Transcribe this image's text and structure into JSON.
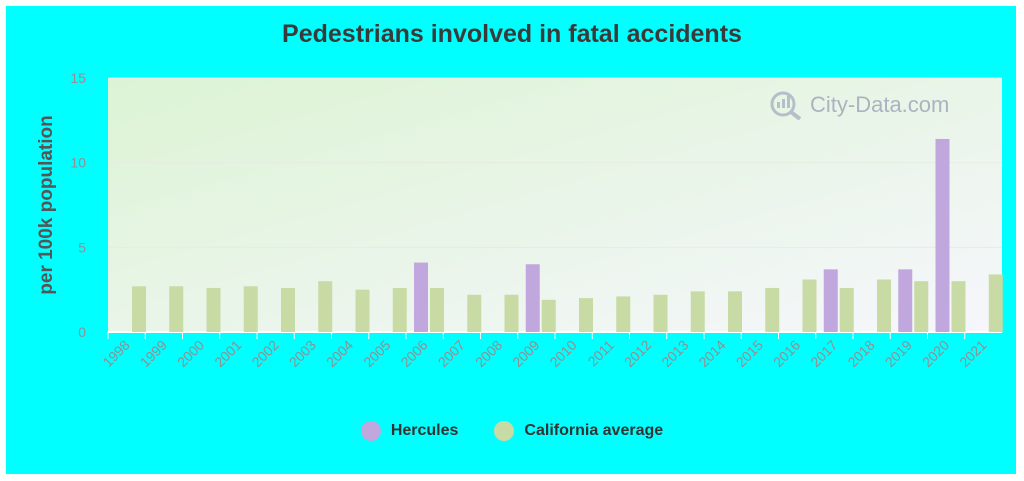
{
  "chart_data": {
    "type": "bar",
    "title": "Pedestrians involved in fatal accidents",
    "ylabel": "per 100k population",
    "xlabel": "",
    "ylim": [
      0,
      15
    ],
    "yticks": [
      0,
      5,
      10,
      15
    ],
    "grid": true,
    "legend_position": "bottom",
    "categories": [
      "1998",
      "1999",
      "2000",
      "2001",
      "2002",
      "2003",
      "2004",
      "2005",
      "2006",
      "2007",
      "2008",
      "2009",
      "2010",
      "2011",
      "2012",
      "2013",
      "2014",
      "2015",
      "2016",
      "2017",
      "2018",
      "2019",
      "2020",
      "2021"
    ],
    "series": [
      {
        "name": "Hercules",
        "color": "#c0a8de",
        "values": [
          null,
          null,
          null,
          null,
          null,
          null,
          null,
          null,
          4.1,
          null,
          null,
          4.0,
          null,
          null,
          null,
          null,
          null,
          null,
          null,
          3.7,
          null,
          3.7,
          11.4,
          null
        ]
      },
      {
        "name": "California average",
        "color": "#c8dba4",
        "values": [
          2.7,
          2.7,
          2.6,
          2.7,
          2.6,
          3.0,
          2.5,
          2.6,
          2.6,
          2.2,
          2.2,
          1.9,
          2.0,
          2.1,
          2.2,
          2.4,
          2.4,
          2.6,
          3.1,
          2.6,
          3.1,
          3.0,
          3.0,
          3.4
        ]
      }
    ]
  },
  "watermark": {
    "text": "City-Data.com",
    "icon": "city-data-logo-icon"
  },
  "colors": {
    "frame_bg": "#00ffff",
    "plot_bg_top": "#f5f5fb",
    "plot_bg_bottom": "#dff5d8",
    "axis_text": "#909090"
  }
}
